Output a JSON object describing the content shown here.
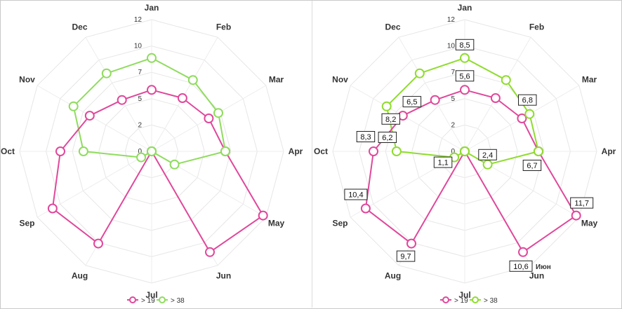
{
  "chart_data": [
    {
      "type": "radar",
      "categories": [
        "Jan",
        "Feb",
        "Mar",
        "Apr",
        "May",
        "Jun",
        "Jul",
        "Aug",
        "Sep",
        "Oct",
        "Nov",
        "Dec"
      ],
      "tick_labels": [
        "0",
        "2",
        "5",
        "7",
        "10",
        "12"
      ],
      "ylim": [
        0,
        12
      ],
      "grid": true,
      "legend": "bottom-center",
      "series": [
        {
          "name": "> 19",
          "color": "#e0489b",
          "values": [
            5.6,
            5.6,
            6.0,
            6.7,
            11.7,
            10.6,
            0.0,
            9.7,
            10.4,
            8.3,
            6.5,
            5.4
          ]
        },
        {
          "name": "> 38",
          "color": "#8fdc5e",
          "values": [
            8.5,
            7.5,
            7.0,
            6.7,
            2.4,
            0.0,
            0.0,
            0.0,
            1.1,
            6.2,
            8.2,
            8.2
          ]
        }
      ],
      "data_labels": false
    },
    {
      "type": "radar",
      "categories": [
        "Jan",
        "Feb",
        "Mar",
        "Apr",
        "May",
        "Jun",
        "Jul",
        "Aug",
        "Sep",
        "Oct",
        "Nov",
        "Dec"
      ],
      "tick_labels": [
        "0",
        "2",
        "5",
        "7",
        "10",
        "12"
      ],
      "ylim": [
        0,
        12
      ],
      "grid": true,
      "legend": "bottom-center",
      "extra_label": "Июн",
      "series": [
        {
          "name": "> 19",
          "color": "#e0489b",
          "values": [
            5.6,
            5.6,
            6.0,
            6.7,
            11.7,
            10.6,
            0.0,
            9.7,
            10.4,
            8.3,
            6.5,
            5.4
          ]
        },
        {
          "name": "> 38",
          "color": "#8fdc2f",
          "values": [
            8.5,
            7.5,
            6.8,
            6.7,
            2.4,
            0.0,
            0.0,
            0.0,
            1.1,
            6.2,
            8.2,
            8.2
          ]
        }
      ],
      "data_labels": true,
      "annotations": [
        {
          "series": "> 38",
          "index": 0,
          "text": "8,5"
        },
        {
          "series": "> 19",
          "index": 0,
          "text": "5,6"
        },
        {
          "series": "> 38",
          "index": 2,
          "text": "6,8"
        },
        {
          "series": "> 38",
          "index": 3,
          "text": "6,7"
        },
        {
          "series": "> 38",
          "index": 4,
          "text": "2,4"
        },
        {
          "series": "> 19",
          "index": 4,
          "text": "11,7"
        },
        {
          "series": "> 19",
          "index": 5,
          "text": "10,6"
        },
        {
          "series": "> 19",
          "index": 7,
          "text": "9,7"
        },
        {
          "series": "> 38",
          "index": 8,
          "text": "1,1"
        },
        {
          "series": "> 19",
          "index": 8,
          "text": "10,4"
        },
        {
          "series": "> 19",
          "index": 9,
          "text": "8,3"
        },
        {
          "series": "> 38",
          "index": 9,
          "text": "6,2"
        },
        {
          "series": "> 19",
          "index": 10,
          "text": "6,5"
        },
        {
          "series": "> 38",
          "index": 10,
          "text": "8,2"
        }
      ]
    }
  ]
}
